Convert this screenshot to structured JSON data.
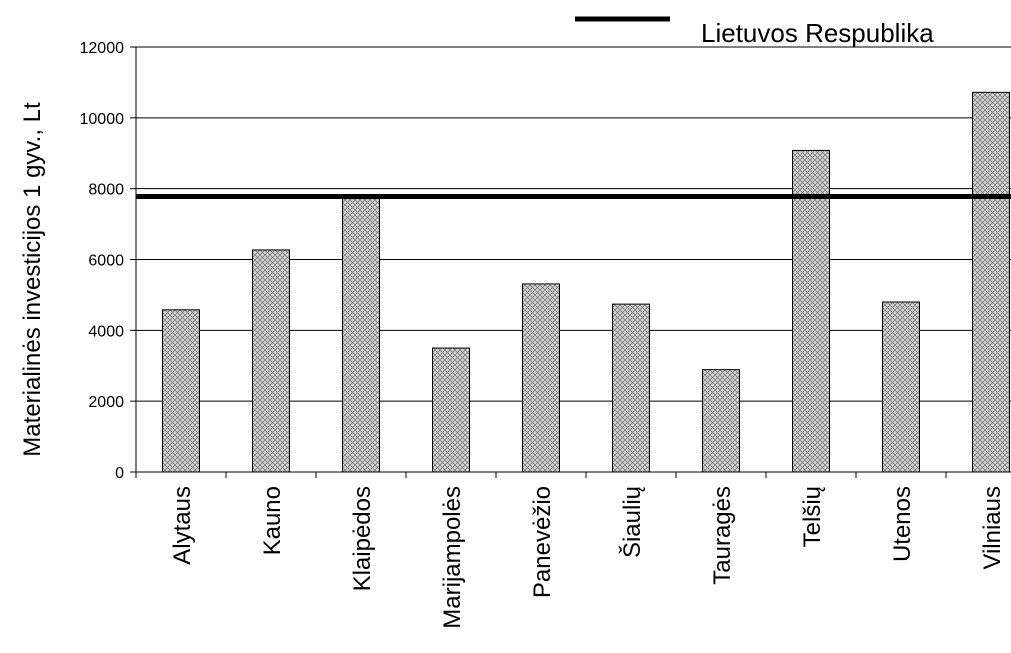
{
  "chart_data": {
    "type": "bar",
    "ylabel": "Materialinės investicijos 1 gyv., Lt",
    "ylim": [
      0,
      12000
    ],
    "yticks": [
      0,
      2000,
      4000,
      6000,
      8000,
      10000,
      12000
    ],
    "categories": [
      "Alytaus",
      "Kauno",
      "Klaipėdos",
      "Marijampolės",
      "Panevėžio",
      "Šiaulių",
      "Tauragės",
      "Telšių",
      "Utenos",
      "Vilniaus"
    ],
    "series": [
      {
        "values": [
          4580,
          6270,
          7720,
          3500,
          5310,
          4740,
          2890,
          9080,
          4800,
          10720
        ],
        "fill_color": "#c8c8c8",
        "pattern": "crosshatch"
      }
    ],
    "reference_line": {
      "name": "Lietuvos Respublika",
      "value": 7780,
      "color": "#000000"
    },
    "legend": {
      "position": "top-right",
      "entries": [
        "Lietuvos Respublika"
      ]
    },
    "grid": {
      "horizontal": true,
      "color": "#000000"
    }
  }
}
